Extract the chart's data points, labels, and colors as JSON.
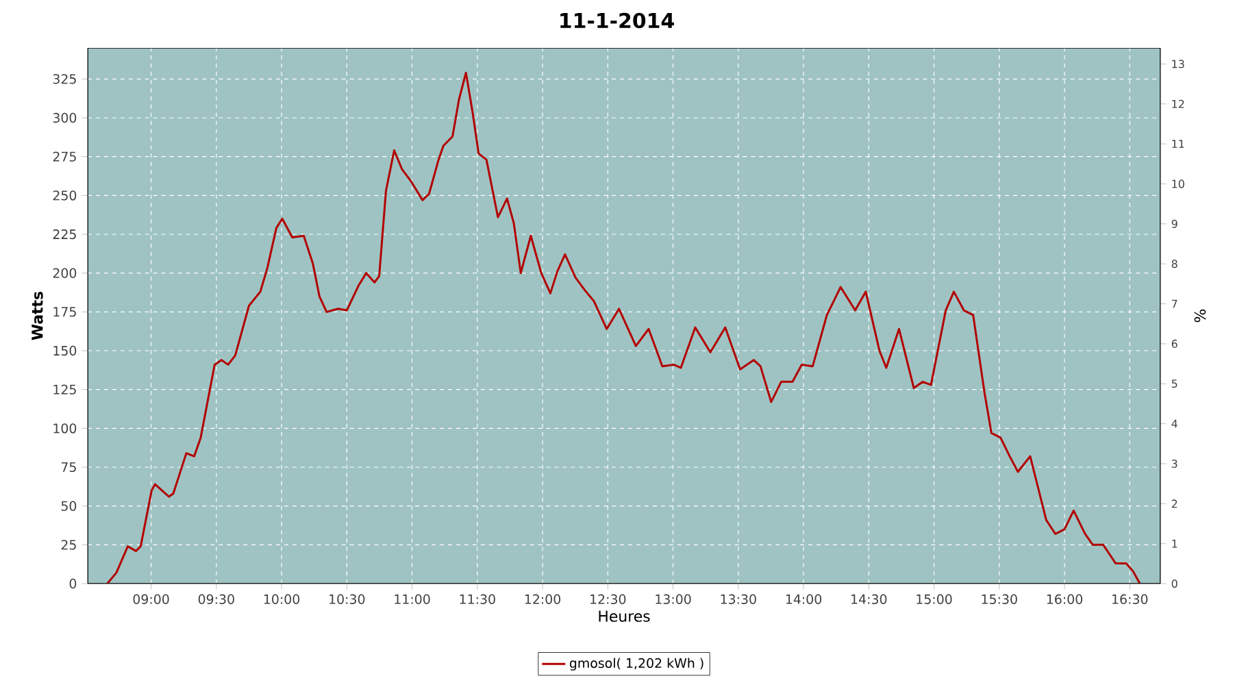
{
  "chart_data": {
    "type": "line",
    "title": "11-1-2014",
    "xlabel": "Heures",
    "ylabel": "Watts",
    "y2label": "%",
    "xlim": [
      8.514,
      16.735
    ],
    "xticks": [
      {
        "value": 9,
        "label": "09:00"
      },
      {
        "value": 9.5,
        "label": "09:30"
      },
      {
        "value": 10,
        "label": "10:00"
      },
      {
        "value": 10.5,
        "label": "10:30"
      },
      {
        "value": 11,
        "label": "11:00"
      },
      {
        "value": 11.5,
        "label": "11:30"
      },
      {
        "value": 12,
        "label": "12:00"
      },
      {
        "value": 12.5,
        "label": "12:30"
      },
      {
        "value": 13,
        "label": "13:00"
      },
      {
        "value": 13.5,
        "label": "13:30"
      },
      {
        "value": 14,
        "label": "14:00"
      },
      {
        "value": 14.5,
        "label": "14:30"
      },
      {
        "value": 15,
        "label": "15:00"
      },
      {
        "value": 15.5,
        "label": "15:30"
      },
      {
        "value": 16,
        "label": "16:00"
      },
      {
        "value": 16.5,
        "label": "16:30"
      }
    ],
    "ylim": [
      0,
      345
    ],
    "yticks": [
      0,
      25,
      50,
      75,
      100,
      125,
      150,
      175,
      200,
      225,
      250,
      275,
      300,
      325
    ],
    "y2lim": [
      0,
      13.4
    ],
    "y2ticks": [
      0,
      1,
      2,
      3,
      4,
      5,
      6,
      7,
      8,
      9,
      10,
      11,
      12,
      13
    ],
    "grid": true,
    "legend": "bottom",
    "marker": "none",
    "line_style": "solid",
    "series": [
      {
        "name": "gmosol( 1,202 kWh )",
        "color": "#b30000",
        "x": [
          8.664,
          8.734,
          8.821,
          8.884,
          8.92,
          9.004,
          9.03,
          9.137,
          9.17,
          9.27,
          9.33,
          9.38,
          9.487,
          9.54,
          9.59,
          9.645,
          9.75,
          9.837,
          9.89,
          9.96,
          10.005,
          10.082,
          10.17,
          10.24,
          10.29,
          10.345,
          10.433,
          10.5,
          10.59,
          10.649,
          10.712,
          10.748,
          10.8,
          10.863,
          10.922,
          10.993,
          11.08,
          11.13,
          11.203,
          11.24,
          11.31,
          11.36,
          11.413,
          11.465,
          11.51,
          11.57,
          11.658,
          11.728,
          11.78,
          11.833,
          11.91,
          11.99,
          12.06,
          12.113,
          12.172,
          12.253,
          12.324,
          12.393,
          12.492,
          12.586,
          12.715,
          12.813,
          12.918,
          13.006,
          13.06,
          13.17,
          13.286,
          13.4,
          13.514,
          13.619,
          13.67,
          13.752,
          13.829,
          13.916,
          13.986,
          14.07,
          14.179,
          14.284,
          14.396,
          14.477,
          14.582,
          14.634,
          14.732,
          14.845,
          14.914,
          14.977,
          15.09,
          15.152,
          15.229,
          15.3,
          15.387,
          15.44,
          15.51,
          15.58,
          15.643,
          15.737,
          15.86,
          15.93,
          16.0,
          16.07,
          16.158,
          16.217,
          16.297,
          16.392,
          16.473,
          16.525,
          16.578
        ],
        "values": [
          0,
          7,
          24,
          21,
          24,
          60,
          64,
          56,
          58,
          84,
          82,
          94,
          141,
          144,
          141,
          147,
          179,
          188,
          203,
          229,
          235,
          223,
          224,
          206,
          185,
          175,
          177,
          176,
          192,
          200,
          194,
          198,
          253,
          279,
          267,
          259,
          247,
          251,
          273,
          282,
          288,
          312,
          329,
          303,
          277,
          273,
          236,
          248,
          232,
          200,
          224,
          200,
          187,
          201,
          212,
          197,
          189,
          182,
          164,
          177,
          153,
          164,
          140,
          141,
          139,
          165,
          149,
          165,
          138,
          144,
          140,
          117,
          130,
          130,
          141,
          140,
          173,
          191,
          176,
          188,
          150,
          139,
          164,
          126,
          130,
          128,
          176,
          188,
          176,
          173,
          123,
          97,
          94,
          82,
          72,
          82,
          41,
          32,
          35,
          47,
          32,
          25,
          25,
          13,
          13,
          8,
          0
        ]
      }
    ]
  }
}
